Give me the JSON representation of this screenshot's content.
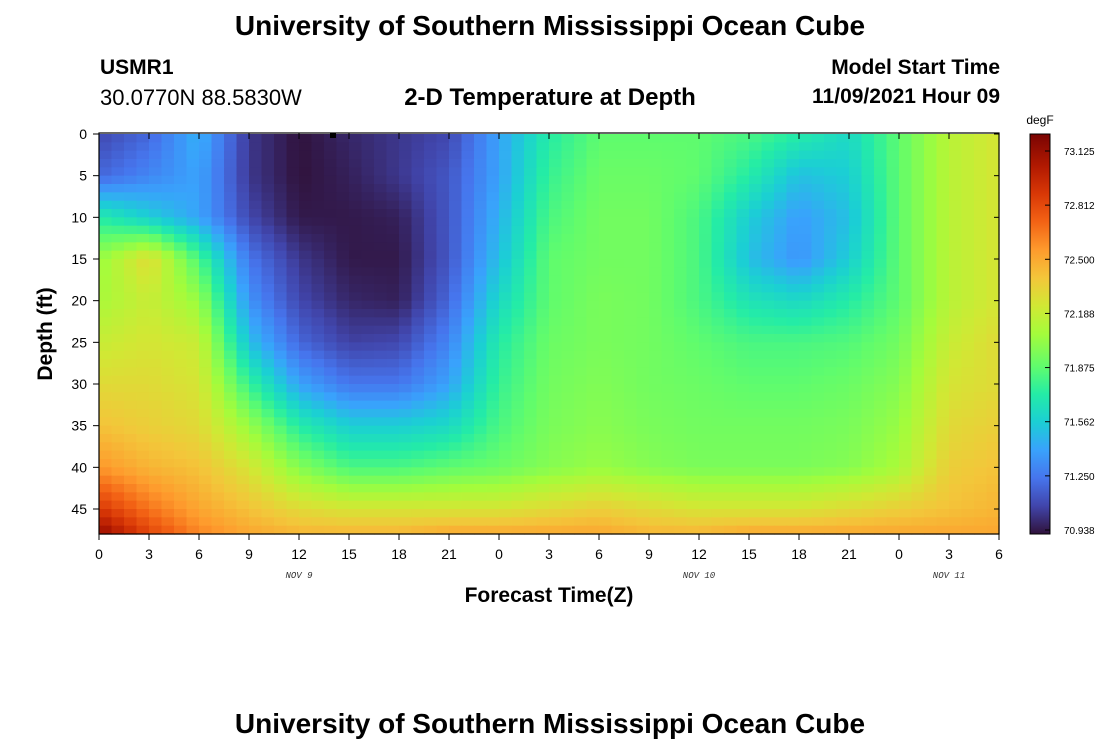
{
  "header": {
    "title": "University of Southern Mississippi Ocean Cube",
    "station": "USMR1",
    "coordinates": "30.0770N  88.5830W",
    "subtitle": "2-D Temperature at Depth",
    "model_start_label": "Model Start Time",
    "model_start_value": "11/09/2021 Hour 09"
  },
  "footer": {
    "title": "University of Southern Mississippi Ocean Cube"
  },
  "chart_data": {
    "type": "heatmap",
    "title": "2-D Temperature at Depth",
    "xlabel": "Forecast Time(Z)",
    "ylabel": "Depth (ft)",
    "x_ticks": [
      "0",
      "3",
      "6",
      "9",
      "12",
      "15",
      "18",
      "21",
      "0",
      "3",
      "6",
      "9",
      "12",
      "15",
      "18",
      "21",
      "0",
      "3",
      "6"
    ],
    "x_day_labels": [
      {
        "label": "NOV 9",
        "hour": 12
      },
      {
        "label": "NOV 10",
        "hour": 36
      },
      {
        "label": "NOV 11",
        "hour": 51
      }
    ],
    "xlim_hours": [
      0,
      54
    ],
    "y_ticks": [
      "0",
      "5",
      "10",
      "15",
      "20",
      "25",
      "30",
      "35",
      "40",
      "45"
    ],
    "ylim_ft": [
      0,
      48
    ],
    "y_inverted": true,
    "colorbar": {
      "unit": "degF",
      "tick_labels": [
        "73.125",
        "72.812",
        "72.500",
        "72.188",
        "71.875",
        "71.562",
        "71.250",
        "70.938"
      ],
      "range": [
        70.938,
        73.125
      ]
    },
    "x_hours": [
      0,
      3,
      6,
      9,
      12,
      15,
      18,
      21,
      24,
      27,
      30,
      33,
      36,
      39,
      42,
      45,
      48,
      51,
      54
    ],
    "depths_ft": [
      0,
      5,
      10,
      15,
      20,
      25,
      30,
      35,
      40,
      45,
      48
    ],
    "values_degF": [
      [
        71.1,
        71.2,
        71.45,
        71.05,
        70.94,
        71.0,
        71.05,
        71.1,
        71.4,
        71.7,
        71.85,
        71.85,
        71.85,
        71.8,
        71.7,
        71.6,
        71.85,
        72.1,
        72.2
      ],
      [
        71.2,
        71.3,
        71.4,
        71.05,
        70.94,
        70.98,
        71.05,
        71.15,
        71.4,
        71.75,
        71.88,
        71.88,
        71.85,
        71.7,
        71.5,
        71.55,
        71.85,
        72.1,
        72.2
      ],
      [
        71.7,
        71.55,
        71.4,
        71.1,
        70.96,
        70.96,
        70.98,
        71.15,
        71.45,
        71.8,
        71.9,
        71.9,
        71.8,
        71.55,
        71.38,
        71.5,
        71.85,
        72.1,
        72.2
      ],
      [
        72.0,
        72.25,
        71.8,
        71.25,
        71.05,
        70.96,
        70.96,
        71.15,
        71.5,
        71.85,
        71.9,
        71.9,
        71.8,
        71.5,
        71.35,
        71.55,
        71.85,
        72.1,
        72.2
      ],
      [
        72.05,
        72.15,
        72.0,
        71.35,
        71.1,
        71.0,
        70.98,
        71.2,
        71.6,
        71.85,
        71.92,
        71.9,
        71.8,
        71.65,
        71.6,
        71.7,
        71.85,
        72.1,
        72.2
      ],
      [
        72.15,
        72.2,
        72.15,
        71.5,
        71.2,
        71.08,
        71.1,
        71.3,
        71.7,
        71.88,
        71.92,
        71.9,
        71.85,
        71.8,
        71.8,
        71.82,
        71.9,
        72.15,
        72.25
      ],
      [
        72.25,
        72.25,
        72.2,
        71.75,
        71.4,
        71.25,
        71.25,
        71.4,
        71.75,
        71.9,
        71.94,
        71.9,
        71.88,
        71.85,
        71.85,
        71.88,
        71.95,
        72.2,
        72.25
      ],
      [
        72.35,
        72.3,
        72.25,
        72.0,
        71.7,
        71.55,
        71.55,
        71.6,
        71.8,
        71.92,
        71.96,
        71.92,
        71.9,
        71.9,
        71.9,
        71.92,
        72.0,
        72.25,
        72.3
      ],
      [
        72.5,
        72.4,
        72.35,
        72.2,
        71.95,
        71.8,
        71.8,
        71.85,
        71.88,
        71.95,
        72.0,
        71.95,
        71.92,
        71.92,
        71.92,
        71.95,
        72.05,
        72.3,
        72.35
      ],
      [
        72.8,
        72.6,
        72.45,
        72.35,
        72.25,
        72.2,
        72.2,
        72.2,
        72.2,
        72.25,
        72.3,
        72.25,
        72.2,
        72.2,
        72.2,
        72.25,
        72.3,
        72.35,
        72.4
      ],
      [
        73.05,
        72.75,
        72.55,
        72.45,
        72.4,
        72.4,
        72.4,
        72.45,
        72.45,
        72.45,
        72.45,
        72.4,
        72.4,
        72.45,
        72.45,
        72.45,
        72.45,
        72.45,
        72.45
      ]
    ]
  }
}
